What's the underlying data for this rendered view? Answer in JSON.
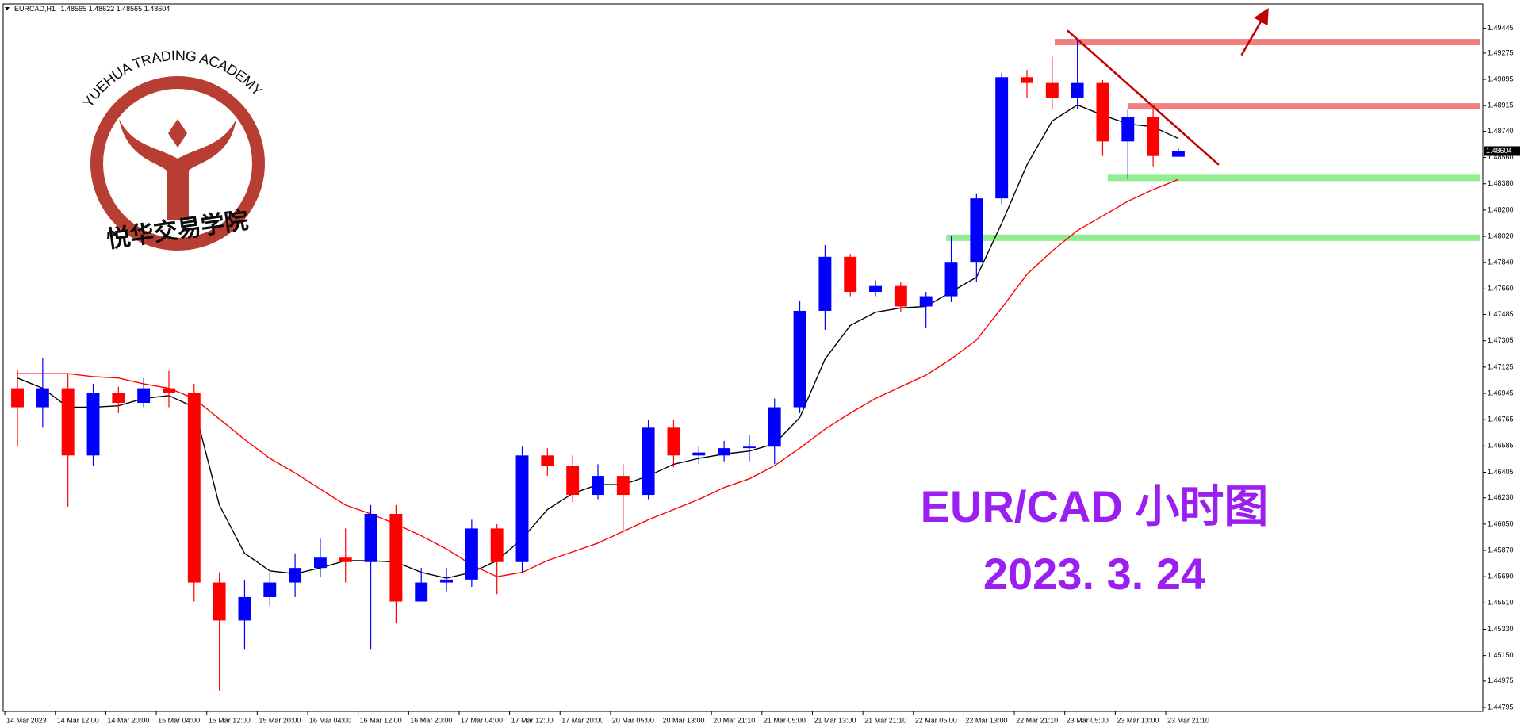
{
  "symbol": "EURCAD,H1",
  "quote": [
    1.48565,
    1.48622,
    1.48565,
    1.48604
  ],
  "watermark": {
    "name": "YUEHUA TRADING ACADEMY",
    "chinese": "悦华交易学院"
  },
  "chart_data": {
    "type": "candlestick",
    "categories": [
      "14 Mar 2023",
      null,
      "14 Mar 12:00",
      null,
      "14 Mar 20:00",
      null,
      "15 Mar 04:00",
      null,
      "15 Mar 12:00",
      null,
      "15 Mar 20:00",
      null,
      "16 Mar 04:00",
      null,
      "16 Mar 12:00",
      null,
      "16 Mar 20:00",
      null,
      "17 Mar 04:00",
      null,
      "17 Mar 12:00",
      null,
      "17 Mar 20:00",
      null,
      "20 Mar 05:00",
      null,
      "20 Mar 13:00",
      null,
      "20 Mar 21:10",
      null,
      "21 Mar 05:00",
      null,
      "21 Mar 13:00",
      null,
      "21 Mar 21:10",
      null,
      "22 Mar 05:00",
      null,
      "22 Mar 13:00",
      null,
      "22 Mar 21:10",
      null,
      "23 Mar 05:00",
      null,
      "23 Mar 13:00",
      null,
      "23 Mar 21:10"
    ],
    "open": [
      1.4698,
      1.4685,
      1.4698,
      1.4652,
      1.4695,
      1.4688,
      1.4698,
      1.4695,
      1.4565,
      1.4539,
      1.4555,
      1.4565,
      1.4575,
      1.4582,
      1.4579,
      1.4612,
      1.4552,
      1.4565,
      1.4567,
      1.4602,
      1.4579,
      1.4652,
      1.4645,
      1.4625,
      1.4638,
      1.4625,
      1.4671,
      1.4652,
      1.4652,
      1.4657,
      1.4658,
      1.4685,
      1.4751,
      1.4788,
      1.4764,
      1.4768,
      1.4754,
      1.4761,
      1.4784,
      1.4828,
      1.4911,
      1.4907,
      1.4897,
      1.4907,
      1.4867,
      1.4884,
      1.48565
    ],
    "high": [
      1.4711,
      1.4719,
      1.4708,
      1.4701,
      1.4699,
      1.4705,
      1.471,
      1.4701,
      1.4572,
      1.4567,
      1.4572,
      1.4585,
      1.4595,
      1.4602,
      1.4618,
      1.4618,
      1.4575,
      1.4575,
      1.4608,
      1.4605,
      1.4658,
      1.4657,
      1.4652,
      1.4646,
      1.4646,
      1.4676,
      1.4676,
      1.4658,
      1.4662,
      1.4666,
      1.4691,
      1.4758,
      1.4796,
      1.479,
      1.4772,
      1.4771,
      1.4764,
      1.4802,
      1.4831,
      1.4914,
      1.4916,
      1.4925,
      1.4937,
      1.4909,
      1.4889,
      1.4889,
      1.48622
    ],
    "low": [
      1.4658,
      1.4671,
      1.4617,
      1.4645,
      1.4681,
      1.4685,
      1.4685,
      1.4552,
      1.4491,
      1.4519,
      1.4549,
      1.4555,
      1.4569,
      1.4565,
      1.4519,
      1.4537,
      1.4552,
      1.4559,
      1.4562,
      1.4557,
      1.4572,
      1.4638,
      1.462,
      1.4622,
      1.46,
      1.4622,
      1.4644,
      1.4646,
      1.4648,
      1.4648,
      1.4646,
      1.4681,
      1.4738,
      1.4761,
      1.4761,
      1.475,
      1.4739,
      1.4757,
      1.4771,
      1.4824,
      1.4897,
      1.4889,
      1.4889,
      1.4857,
      1.4841,
      1.485,
      1.48565
    ],
    "close": [
      1.4685,
      1.4698,
      1.4652,
      1.4695,
      1.4688,
      1.4698,
      1.4695,
      1.4565,
      1.4539,
      1.4555,
      1.4565,
      1.4575,
      1.4582,
      1.4579,
      1.4612,
      1.4552,
      1.4565,
      1.4567,
      1.4602,
      1.4579,
      1.4652,
      1.4645,
      1.4625,
      1.4638,
      1.4625,
      1.4671,
      1.4652,
      1.4654,
      1.4657,
      1.4658,
      1.4685,
      1.4751,
      1.4788,
      1.4764,
      1.4768,
      1.4754,
      1.4761,
      1.4784,
      1.4828,
      1.4911,
      1.4907,
      1.4897,
      1.4907,
      1.4867,
      1.4884,
      1.4857,
      1.48604
    ],
    "up_color": "#0000ff",
    "down_color": "#ff0000",
    "series": [
      {
        "type": "line",
        "color": "#000000",
        "values": [
          1.4705,
          1.4698,
          1.4685,
          1.4685,
          1.4686,
          1.4691,
          1.4693,
          1.4685,
          1.4618,
          1.4585,
          1.4573,
          1.4571,
          1.4575,
          1.458,
          1.458,
          1.4579,
          1.4572,
          1.4568,
          1.4572,
          1.458,
          1.4595,
          1.4615,
          1.4626,
          1.4632,
          1.4632,
          1.4638,
          1.4646,
          1.465,
          1.4653,
          1.4655,
          1.466,
          1.4678,
          1.4718,
          1.4741,
          1.475,
          1.4753,
          1.4754,
          1.4764,
          1.4774,
          1.4811,
          1.4851,
          1.4881,
          1.4892,
          1.4885,
          1.4879,
          1.4877,
          1.4869
        ]
      },
      {
        "type": "line",
        "color": "#ff0000",
        "values": [
          1.4708,
          1.4708,
          1.4708,
          1.4706,
          1.4705,
          1.4701,
          1.4698,
          1.4691,
          1.4677,
          1.4663,
          1.465,
          1.464,
          1.4629,
          1.4618,
          1.4612,
          1.4605,
          1.4597,
          1.4588,
          1.4577,
          1.4569,
          1.4572,
          1.458,
          1.4586,
          1.4592,
          1.46,
          1.4608,
          1.4615,
          1.4622,
          1.463,
          1.4636,
          1.4645,
          1.4657,
          1.467,
          1.4681,
          1.4691,
          1.4699,
          1.4707,
          1.4718,
          1.4731,
          1.4753,
          1.4776,
          1.4792,
          1.4806,
          1.4816,
          1.4826,
          1.4834,
          1.4841
        ]
      }
    ],
    "ylim": [
      1.44768,
      1.49611
    ],
    "yticks": [
      1.49445,
      1.49275,
      1.49095,
      1.48915,
      {
        "value": 1.4874,
        "label": "1.48740"
      },
      {
        "value": 1.4856,
        "label": "1.48560"
      },
      {
        "value": 1.4838,
        "label": "1.48380"
      },
      {
        "value": 1.482,
        "label": "1.48200"
      },
      {
        "value": 1.4802,
        "label": "1.48020"
      },
      {
        "value": 1.4784,
        "label": "1.47840"
      },
      {
        "value": 1.4766,
        "label": "1.47660"
      },
      1.47485,
      1.47305,
      1.47125,
      1.46945,
      1.46765,
      1.46585,
      1.46405,
      {
        "value": 1.4623,
        "label": "1.46230"
      },
      {
        "value": 1.4605,
        "label": "1.46050"
      },
      {
        "value": 1.4587,
        "label": "1.45870"
      },
      {
        "value": 1.4569,
        "label": "1.45690"
      },
      {
        "value": 1.4551,
        "label": "1.45510"
      },
      {
        "value": 1.4533,
        "label": "1.45330"
      },
      {
        "value": 1.4515,
        "label": "1.45150"
      },
      1.44975,
      1.44795
    ],
    "last_price": 1.48604,
    "zones": [
      {
        "y": 1.4935,
        "from": 41.6,
        "color": "#f08080"
      },
      {
        "y": 1.4891,
        "from": 44.5,
        "color": "#f08080"
      },
      {
        "y": 1.4842,
        "from": 43.7,
        "color": "#90ee90"
      },
      {
        "y": 1.4801,
        "from": 37.3,
        "color": "#90ee90"
      }
    ],
    "trendline": {
      "x": [
        42.1,
        48.1
      ],
      "y": [
        1.4943,
        1.4851
      ],
      "color": "#c00000"
    },
    "arrow": {
      "x": [
        49,
        50
      ],
      "y": [
        1.4926,
        1.4956
      ],
      "color": "#c00000"
    },
    "annotations": [
      "EUR/CAD 小时图",
      "2023. 3. 24"
    ]
  }
}
